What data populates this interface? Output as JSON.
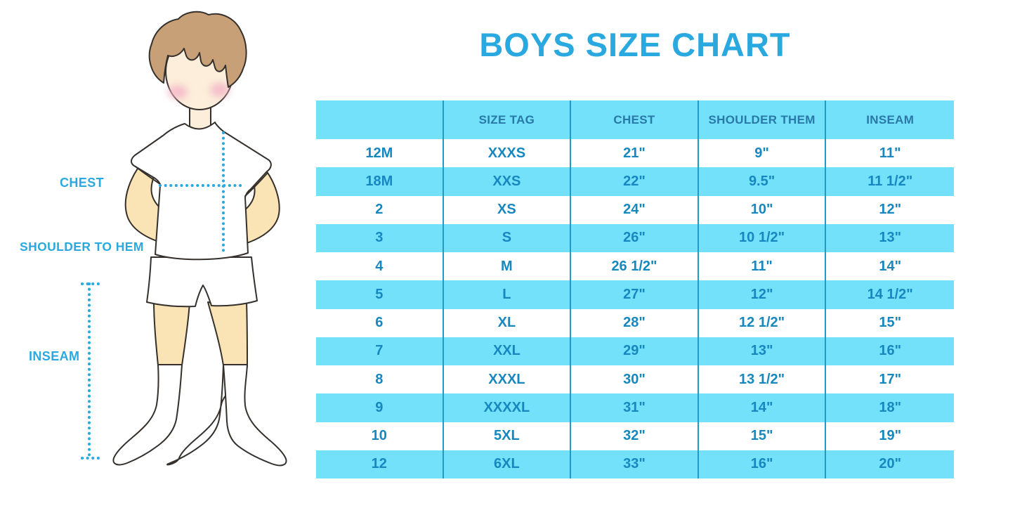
{
  "title": "BOYS SIZE CHART",
  "colors": {
    "accent": "#29A9E0",
    "row_blue": "#74E1FB",
    "cell_text": "#1787C0",
    "header_text": "#2878A8",
    "divider": "#1E9CC9",
    "skin": "#FAE3B4",
    "skin_face": "#FCEEDA",
    "hair": "#C7A077",
    "cheek": "#F4B3C7",
    "outline": "#35302B"
  },
  "figure": {
    "labels": {
      "chest": "CHEST",
      "shoulder_to_hem": "SHOULDER TO HEM",
      "inseam": "INSEAM"
    }
  },
  "chart_data": {
    "type": "table",
    "title": "BOYS SIZE CHART",
    "columns": [
      "",
      "SIZE TAG",
      "CHEST",
      "SHOULDER THEM",
      "INSEAM"
    ],
    "rows": [
      [
        "12M",
        "XXXS",
        "21\"",
        "9\"",
        "11\""
      ],
      [
        "18M",
        "XXS",
        "22\"",
        "9.5\"",
        "11 1/2\""
      ],
      [
        "2",
        "XS",
        "24\"",
        "10\"",
        "12\""
      ],
      [
        "3",
        "S",
        "26\"",
        "10 1/2\"",
        "13\""
      ],
      [
        "4",
        "M",
        "26 1/2\"",
        "11\"",
        "14\""
      ],
      [
        "5",
        "L",
        "27\"",
        "12\"",
        "14 1/2\""
      ],
      [
        "6",
        "XL",
        "28\"",
        "12 1/2\"",
        "15\""
      ],
      [
        "7",
        "XXL",
        "29\"",
        "13\"",
        "16\""
      ],
      [
        "8",
        "XXXL",
        "30\"",
        "13 1/2\"",
        "17\""
      ],
      [
        "9",
        "XXXXL",
        "31\"",
        "14\"",
        "18\""
      ],
      [
        "10",
        "5XL",
        "32\"",
        "15\"",
        "19\""
      ],
      [
        "12",
        "6XL",
        "33\"",
        "16\"",
        "20\""
      ]
    ],
    "layout": {
      "row_striping": "white/light-blue alternating starting white",
      "legend": "none",
      "grid": "vertical dividers only"
    }
  }
}
